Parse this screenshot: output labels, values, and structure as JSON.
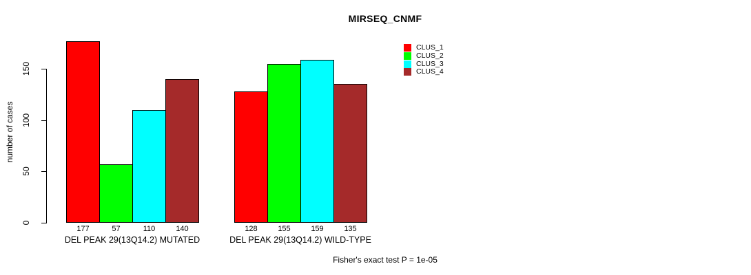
{
  "title": "MIRSEQ_CNMF",
  "ylabel": "number of cases",
  "footer": "Fisher's exact test P = 1e-05",
  "chart_data": {
    "type": "bar",
    "title": "MIRSEQ_CNMF",
    "xlabel": "",
    "ylabel": "number of cases",
    "categories": [
      "DEL PEAK 29(13Q14.2) MUTATED",
      "DEL PEAK 29(13Q14.2) WILD-TYPE"
    ],
    "series": [
      {
        "name": "CLUS_1",
        "color": "#ff0000",
        "values": [
          177,
          128
        ]
      },
      {
        "name": "CLUS_2",
        "color": "#00ff00",
        "values": [
          57,
          155
        ]
      },
      {
        "name": "CLUS_3",
        "color": "#00ffff",
        "values": [
          110,
          159
        ]
      },
      {
        "name": "CLUS_4",
        "color": "#a52a2a",
        "values": [
          140,
          135
        ]
      }
    ],
    "bar_value_labels": [
      [
        177,
        57,
        110,
        140
      ],
      [
        128,
        155,
        159,
        135
      ]
    ],
    "yticks": [
      0,
      50,
      100,
      150
    ],
    "ylim": [
      0,
      180
    ],
    "grid": false,
    "legend_position": "top-right",
    "annotation": "Fisher's exact test P = 1e-05"
  }
}
